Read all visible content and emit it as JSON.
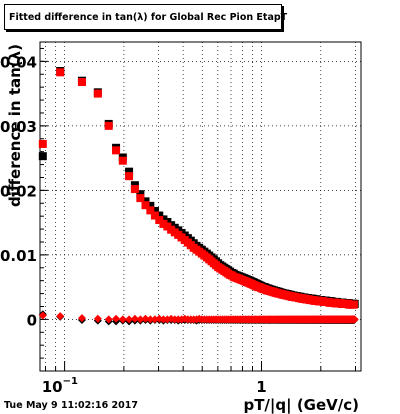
{
  "chart_data": {
    "type": "scatter",
    "title": "Fitted difference in tan(λ) for Global Rec Pion EtapT",
    "xlabel": "pT/|q| (GeV/c)",
    "ylabel": "difference in tan(λ)",
    "xscale": "log",
    "xlim": [
      0.075,
      3.2
    ],
    "ylim": [
      -0.008,
      0.043
    ],
    "x_ticks": [
      {
        "value": 0.1,
        "base": "10",
        "exp": "−1"
      },
      {
        "value": 1,
        "label": "1"
      }
    ],
    "y_ticks": [
      {
        "value": 0,
        "label": "0"
      },
      {
        "value": 0.01,
        "label": "0.01"
      },
      {
        "value": 0.02,
        "label": "0.02"
      },
      {
        "value": 0.03,
        "label": "0.03"
      },
      {
        "value": 0.04,
        "label": "0.04"
      }
    ],
    "grid": true,
    "x": [
      0.0775,
      0.095,
      0.1225,
      0.1475,
      0.1675,
      0.1825,
      0.1975,
      0.2125,
      0.2275,
      0.2425,
      0.2575,
      0.2725,
      0.2875,
      0.3025,
      0.3175,
      0.3325,
      0.3475,
      0.3625,
      0.3775,
      0.3925,
      0.4075,
      0.4225,
      0.4375,
      0.4525,
      0.4675,
      0.4825,
      0.4975,
      0.5125,
      0.5275,
      0.5425,
      0.5575,
      0.5725,
      0.5875,
      0.6025,
      0.6175,
      0.6325,
      0.6475,
      0.6625,
      0.6775,
      0.6925,
      0.7075,
      0.7225,
      0.7375,
      0.7525,
      0.7675,
      0.7825,
      0.7975,
      0.8125,
      0.8275,
      0.8425,
      0.8575,
      0.8725,
      0.8875,
      0.9025,
      0.9175,
      0.9325,
      0.9475,
      0.9625,
      0.9775,
      0.9925,
      1.0075,
      1.0225,
      1.0375,
      1.0525,
      1.0675,
      1.0825,
      1.0975,
      1.1125,
      1.1275,
      1.1425,
      1.1575,
      1.1725,
      1.1875,
      1.2025,
      1.2175,
      1.2325,
      1.2475,
      1.2625,
      1.2775,
      1.2925,
      1.3075,
      1.3225,
      1.3375,
      1.3525,
      1.3675,
      1.3825,
      1.3975,
      1.4125,
      1.4275,
      1.4425,
      1.4575,
      1.4725,
      1.4875,
      1.5025,
      1.5175,
      1.5325,
      1.5475,
      1.5625,
      1.5775,
      1.5925,
      1.6075,
      1.6225,
      1.6375,
      1.6525,
      1.6675,
      1.6825,
      1.6975,
      1.7125,
      1.7275,
      1.7425,
      1.7575,
      1.7725,
      1.7875,
      1.8025,
      1.8175,
      1.8325,
      1.8475,
      1.8625,
      1.8775,
      1.8925,
      1.9075,
      1.9225,
      1.9375,
      1.9525,
      1.9675,
      1.9825,
      1.9975,
      2.0125,
      2.0275,
      2.0425,
      2.0575,
      2.0725,
      2.0875,
      2.1025,
      2.1175,
      2.1325,
      2.1475,
      2.1625,
      2.1775,
      2.1925,
      2.2075,
      2.2225,
      2.2375,
      2.2525,
      2.2675,
      2.2825,
      2.2975,
      2.3125,
      2.3275,
      2.3425,
      2.3575,
      2.3725,
      2.3875,
      2.4025,
      2.4175,
      2.4325,
      2.4475,
      2.4625,
      2.4775,
      2.4925,
      2.5075,
      2.5225,
      2.5375,
      2.5525,
      2.5675,
      2.5825,
      2.5975,
      2.6125,
      2.6275,
      2.6425,
      2.6575,
      2.6725,
      2.6875,
      2.7025,
      2.7175,
      2.7325,
      2.7475,
      2.7625,
      2.7775,
      2.7925,
      2.8075,
      2.8225,
      2.8375,
      2.8525,
      2.8675,
      2.8825,
      2.8975,
      2.9125,
      2.9275,
      2.9425,
      2.9575,
      2.9725,
      2.9875
    ],
    "series": [
      {
        "color": "#000000",
        "marker": "square",
        "values": [
          0.0253,
          0.0385,
          0.037,
          0.0352,
          0.0303,
          0.0266,
          0.0251,
          0.0229,
          0.0208,
          0.0194,
          0.0183,
          0.0176,
          0.0168,
          0.0161,
          0.0155,
          0.0151,
          0.0146,
          0.0142,
          0.0138,
          0.0134,
          0.013,
          0.0126,
          0.0122,
          0.0118,
          0.0114,
          0.0111,
          0.0108,
          0.0105,
          0.0102,
          0.0099,
          0.0096,
          0.0093,
          0.009,
          0.0087,
          0.0084,
          0.0082,
          0.008,
          0.0078,
          0.0076,
          0.0074,
          0.0072,
          0.0071,
          0.0069,
          0.0068,
          0.0067,
          0.0066,
          0.0065,
          0.0064,
          0.0063,
          0.0062,
          0.0061,
          0.006,
          0.0059,
          0.0058,
          0.0057,
          0.0056,
          0.0055,
          0.0054,
          0.0053,
          0.0052,
          0.0051,
          0.005,
          0.005,
          0.0049,
          0.0048,
          0.0048,
          0.0047,
          0.0046,
          0.0046,
          0.0045,
          0.0045,
          0.0044,
          0.0044,
          0.0043,
          0.0043,
          0.0042,
          0.0042,
          0.0041,
          0.0041,
          0.004,
          0.004,
          0.004,
          0.0039,
          0.0039,
          0.0039,
          0.0038,
          0.0038,
          0.0038,
          0.0037,
          0.0037,
          0.0037,
          0.0036,
          0.0036,
          0.0036,
          0.0036,
          0.0035,
          0.0035,
          0.0035,
          0.0035,
          0.0034,
          0.0034,
          0.0034,
          0.0034,
          0.0034,
          0.0033,
          0.0033,
          0.0033,
          0.0033,
          0.0033,
          0.0032,
          0.0032,
          0.0032,
          0.0032,
          0.0032,
          0.0032,
          0.0031,
          0.0031,
          0.0031,
          0.0031,
          0.0031,
          0.0031,
          0.003,
          0.003,
          0.003,
          0.003,
          0.003,
          0.003,
          0.003,
          0.0029,
          0.0029,
          0.0029,
          0.0029,
          0.0029,
          0.0029,
          0.0029,
          0.0029,
          0.0028,
          0.0028,
          0.0028,
          0.0028,
          0.0028,
          0.0028,
          0.0028,
          0.0028,
          0.0028,
          0.0027,
          0.0027,
          0.0027,
          0.0027,
          0.0027,
          0.0027,
          0.0027,
          0.0027,
          0.0027,
          0.0027,
          0.0026,
          0.0026,
          0.0026,
          0.0026,
          0.0026,
          0.0026,
          0.0026,
          0.0026,
          0.0026,
          0.0026,
          0.0026,
          0.0025,
          0.0025,
          0.0025,
          0.0025,
          0.0025,
          0.0025,
          0.0025,
          0.0025,
          0.0025,
          0.0025,
          0.0025,
          0.0025,
          0.0025,
          0.0024,
          0.0024,
          0.0024,
          0.0024,
          0.0024,
          0.0024,
          0.0024,
          0.0024,
          0.0024,
          0.0024,
          0.0024,
          0.0024,
          0.0024
        ]
      },
      {
        "color": "#ff0000",
        "marker": "square",
        "values": [
          0.0272,
          0.0383,
          0.0368,
          0.035,
          0.03,
          0.0262,
          0.0246,
          0.0222,
          0.0202,
          0.0188,
          0.0177,
          0.0169,
          0.0161,
          0.0154,
          0.0148,
          0.0144,
          0.0139,
          0.0135,
          0.0131,
          0.0127,
          0.0123,
          0.0119,
          0.0115,
          0.0111,
          0.0108,
          0.0105,
          0.0102,
          0.0099,
          0.0096,
          0.0093,
          0.009,
          0.0087,
          0.0084,
          0.0081,
          0.0079,
          0.0077,
          0.0075,
          0.0073,
          0.0071,
          0.0069,
          0.0068,
          0.0066,
          0.0065,
          0.0064,
          0.0063,
          0.0062,
          0.0061,
          0.006,
          0.0059,
          0.0058,
          0.0057,
          0.0056,
          0.0055,
          0.0054,
          0.0053,
          0.0052,
          0.0051,
          0.005,
          0.005,
          0.0049,
          0.0048,
          0.0047,
          0.0047,
          0.0046,
          0.0045,
          0.0045,
          0.0044,
          0.0044,
          0.0043,
          0.0043,
          0.0042,
          0.0042,
          0.0041,
          0.0041,
          0.004,
          0.004,
          0.004,
          0.0039,
          0.0039,
          0.0038,
          0.0038,
          0.0038,
          0.0037,
          0.0037,
          0.0037,
          0.0036,
          0.0036,
          0.0036,
          0.0035,
          0.0035,
          0.0035,
          0.0035,
          0.0034,
          0.0034,
          0.0034,
          0.0034,
          0.0033,
          0.0033,
          0.0033,
          0.0033,
          0.0032,
          0.0032,
          0.0032,
          0.0032,
          0.0032,
          0.0031,
          0.0031,
          0.0031,
          0.0031,
          0.0031,
          0.003,
          0.003,
          0.003,
          0.003,
          0.003,
          0.003,
          0.0029,
          0.0029,
          0.0029,
          0.0029,
          0.0029,
          0.0029,
          0.0029,
          0.0028,
          0.0028,
          0.0028,
          0.0028,
          0.0028,
          0.0028,
          0.0028,
          0.0028,
          0.0027,
          0.0027,
          0.0027,
          0.0027,
          0.0027,
          0.0027,
          0.0027,
          0.0027,
          0.0027,
          0.0026,
          0.0026,
          0.0026,
          0.0026,
          0.0026,
          0.0026,
          0.0026,
          0.0026,
          0.0026,
          0.0026,
          0.0026,
          0.0025,
          0.0025,
          0.0025,
          0.0025,
          0.0025,
          0.0025,
          0.0025,
          0.0025,
          0.0025,
          0.0025,
          0.0025,
          0.0025,
          0.0024,
          0.0024,
          0.0024,
          0.0024,
          0.0024,
          0.0024,
          0.0024,
          0.0024,
          0.0024,
          0.0024,
          0.0024,
          0.0024,
          0.0024,
          0.0024,
          0.0024,
          0.0023,
          0.0023,
          0.0023,
          0.0023,
          0.0023,
          0.0023,
          0.0023,
          0.0023,
          0.0023,
          0.0023,
          0.0023,
          0.0023
        ]
      },
      {
        "color": "#000000",
        "marker": "diamond",
        "values": [
          0.0008,
          0.0004,
          -0.0001,
          -0.0002,
          -0.0003,
          -0.0003,
          -0.0002,
          -0.0003,
          -0.0002,
          -0.0002,
          -0.0001,
          -0.0002,
          -0.0001,
          -0.0001,
          -0.0002,
          -0.0001,
          -0.0001,
          -0.0001,
          -0.0002,
          -0.0001,
          -0.0001,
          -0.0001,
          -0.0001,
          -0.0001,
          -0.0002,
          -0.0001,
          -0.0001,
          -0.0001,
          -0.0001,
          -0.0001,
          -0.0001,
          -0.0001,
          -0.0001,
          -0.0001,
          -0.0001,
          -0.0001,
          -0.0001,
          -0.0001,
          -0.0001,
          -0.0001,
          -0.0001,
          -0.0001,
          -0.0001,
          -0.0001,
          -0.0001,
          -0.0001,
          -0.0001,
          -0.0001,
          -0.0001,
          -0.0001,
          -0.0001,
          -0.0001,
          -0.0001,
          -0.0001,
          -0.0001,
          -0.0001,
          -0.0001,
          -0.0001,
          -0.0001,
          -0.0001,
          -0.0001,
          -0.0001,
          -0.0001,
          -0.0001,
          -0.0001,
          -0.0001,
          -0.0001,
          -0.0001,
          -0.0001,
          -0.0001,
          -0.0001,
          -0.0001,
          -0.0001,
          -0.0001,
          -0.0001,
          -0.0001,
          -0.0001,
          -0.0001,
          -0.0001,
          -0.0001,
          -0.0001,
          -0.0001,
          -0.0001,
          -0.0001,
          -0.0001,
          -0.0001,
          -0.0001,
          -0.0001,
          -0.0001,
          -0.0001,
          -0.0001,
          -0.0001,
          -0.0001,
          -0.0001,
          -0.0001,
          -0.0001,
          -0.0001,
          -0.0001,
          -0.0001,
          -0.0001,
          -0.0001,
          -0.0001,
          -0.0001,
          -0.0001,
          -0.0001,
          -0.0001,
          -0.0001,
          -0.0001,
          -0.0001,
          -0.0001,
          -0.0001,
          -0.0001,
          -0.0001,
          -0.0001,
          -0.0001,
          -0.0001,
          -0.0001,
          -0.0001,
          -0.0001,
          -0.0001,
          -0.0001,
          -0.0001,
          -0.0001,
          -0.0001,
          -0.0001,
          -0.0001,
          -0.0001,
          -0.0001,
          -0.0001,
          -0.0001,
          -0.0001,
          -0.0001,
          -0.0001,
          -0.0001,
          -0.0001,
          -0.0001,
          -0.0001,
          -0.0001,
          -0.0001,
          -0.0001,
          -0.0001,
          -0.0001,
          -0.0001,
          -0.0001,
          -0.0001,
          -0.0001,
          -0.0001,
          -0.0001,
          -0.0001,
          -0.0001,
          -0.0001,
          -0.0001,
          -0.0001,
          -0.0001,
          -0.0001,
          -0.0001,
          -0.0001,
          -0.0001,
          -0.0001,
          -0.0001,
          -0.0001,
          -0.0001,
          -0.0001,
          -0.0001,
          -0.0001,
          -0.0001,
          -0.0001,
          -0.0001,
          -0.0001,
          -0.0001,
          -0.0001,
          -0.0001,
          -0.0001,
          -0.0001,
          -0.0001,
          -0.0001,
          -0.0001,
          -0.0001,
          -0.0001,
          -0.0001,
          -0.0001,
          -0.0001,
          -0.0001,
          -0.0001,
          -0.0001,
          -0.0001,
          -0.0001,
          -0.0001,
          -0.0001,
          -0.0001,
          -0.0001
        ]
      },
      {
        "color": "#ff0000",
        "marker": "diamond",
        "values": [
          0.0006,
          0.0005,
          0.0002,
          0.0001,
          0.0,
          0.0001,
          0.0,
          0.0,
          0.0001,
          0.0,
          0.0001,
          0.0,
          0.0,
          0.0001,
          0.0,
          0.0,
          0.0001,
          0.0,
          0.0,
          0.0,
          0.0001,
          0.0,
          0.0,
          0.0,
          0.0,
          0.0001,
          0.0,
          0.0,
          0.0,
          0.0,
          0.0,
          0.0,
          0.0,
          0.0,
          0.0,
          0.0,
          0.0,
          0.0,
          0.0,
          0.0,
          0.0,
          0.0,
          0.0,
          0.0,
          0.0,
          0.0,
          0.0,
          0.0,
          0.0,
          0.0,
          0.0,
          0.0,
          0.0,
          0.0,
          0.0,
          0.0,
          0.0,
          0.0,
          0.0,
          0.0,
          0.0,
          0.0,
          0.0,
          0.0,
          0.0,
          0.0,
          0.0,
          0.0,
          0.0,
          0.0,
          0.0,
          0.0,
          0.0,
          0.0,
          0.0,
          0.0,
          0.0,
          0.0,
          0.0,
          0.0,
          0.0,
          0.0,
          0.0,
          0.0,
          0.0,
          0.0,
          0.0,
          0.0,
          0.0,
          0.0,
          0.0,
          0.0,
          0.0,
          0.0,
          0.0,
          0.0,
          0.0,
          0.0,
          0.0,
          0.0,
          0.0,
          0.0,
          0.0,
          0.0,
          0.0,
          0.0,
          0.0,
          0.0,
          0.0,
          0.0,
          0.0,
          0.0,
          0.0,
          0.0,
          0.0,
          0.0,
          0.0,
          0.0,
          0.0,
          0.0,
          0.0,
          0.0,
          0.0,
          0.0,
          0.0,
          0.0,
          0.0,
          0.0,
          0.0,
          0.0,
          0.0,
          0.0,
          0.0,
          0.0,
          0.0,
          0.0,
          0.0,
          0.0,
          0.0,
          0.0,
          0.0,
          0.0,
          0.0,
          0.0,
          0.0,
          0.0,
          0.0,
          0.0,
          0.0,
          0.0,
          0.0,
          0.0,
          0.0,
          0.0,
          0.0,
          0.0,
          0.0,
          0.0,
          0.0,
          0.0,
          0.0,
          0.0,
          0.0,
          0.0,
          0.0,
          0.0,
          0.0,
          0.0,
          0.0,
          0.0,
          0.0,
          0.0,
          0.0,
          0.0,
          0.0,
          0.0,
          0.0,
          0.0,
          0.0,
          0.0,
          0.0,
          0.0,
          0.0,
          0.0,
          0.0,
          0.0,
          0.0,
          0.0,
          0.0,
          0.0,
          0.0,
          0.0
        ]
      }
    ]
  },
  "footer": {
    "timestamp": "Tue May  9 11:02:16 2017"
  }
}
